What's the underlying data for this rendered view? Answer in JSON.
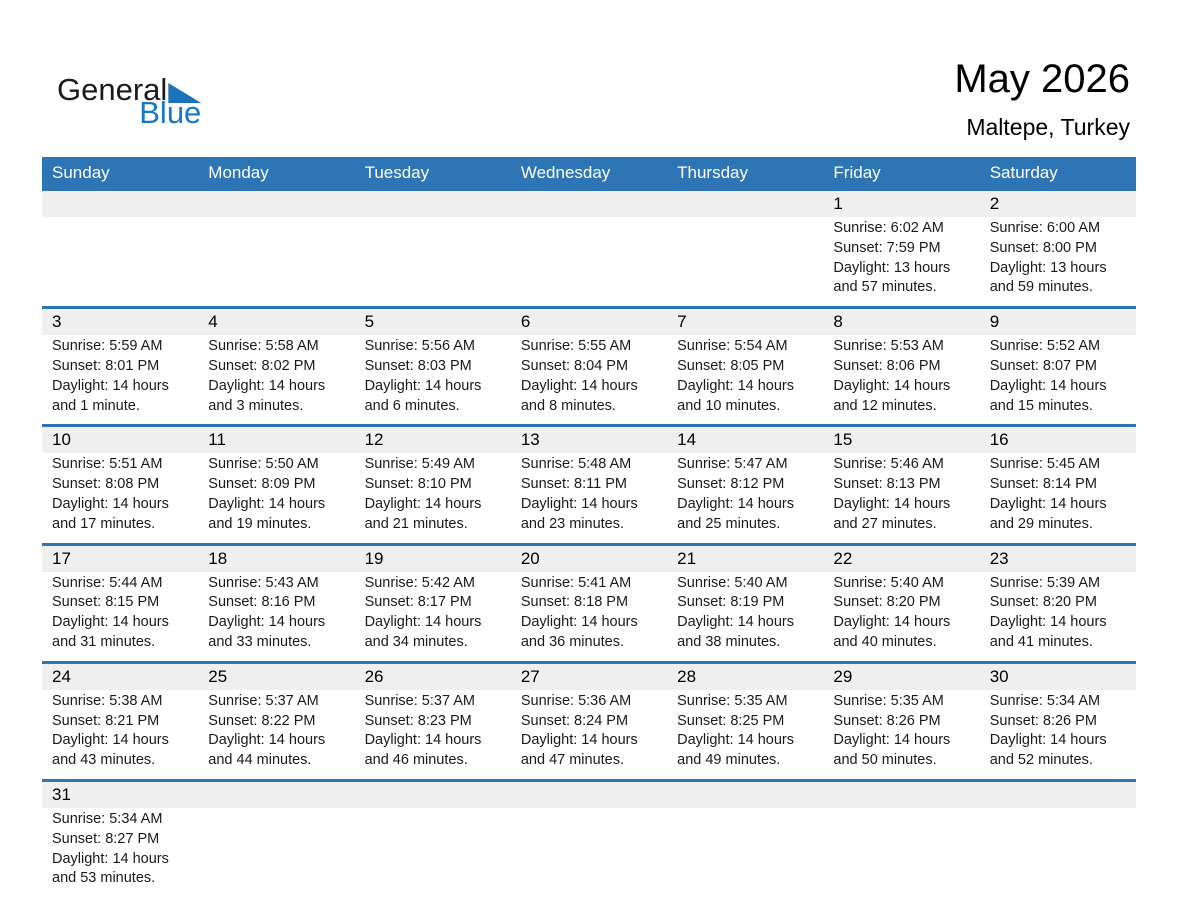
{
  "logo": {
    "text_black": "General",
    "text_blue": "Blue"
  },
  "header": {
    "title": "May 2026",
    "subtitle": "Maltepe, Turkey"
  },
  "colors": {
    "accent_blue": "#2E75B6",
    "band_gray": "#EFEFEF",
    "logo_blue": "#1878C8",
    "logo_triangle": "#1B74B8",
    "header_text": "#FFFFFF"
  },
  "weekdays": [
    "Sunday",
    "Monday",
    "Tuesday",
    "Wednesday",
    "Thursday",
    "Friday",
    "Saturday"
  ],
  "weeks": [
    [
      null,
      null,
      null,
      null,
      null,
      {
        "day": "1",
        "sunrise": "Sunrise: 6:02 AM",
        "sunset": "Sunset: 7:59 PM",
        "daylight": "Daylight: 13 hours and 57 minutes."
      },
      {
        "day": "2",
        "sunrise": "Sunrise: 6:00 AM",
        "sunset": "Sunset: 8:00 PM",
        "daylight": "Daylight: 13 hours and 59 minutes."
      }
    ],
    [
      {
        "day": "3",
        "sunrise": "Sunrise: 5:59 AM",
        "sunset": "Sunset: 8:01 PM",
        "daylight": "Daylight: 14 hours and 1 minute."
      },
      {
        "day": "4",
        "sunrise": "Sunrise: 5:58 AM",
        "sunset": "Sunset: 8:02 PM",
        "daylight": "Daylight: 14 hours and 3 minutes."
      },
      {
        "day": "5",
        "sunrise": "Sunrise: 5:56 AM",
        "sunset": "Sunset: 8:03 PM",
        "daylight": "Daylight: 14 hours and 6 minutes."
      },
      {
        "day": "6",
        "sunrise": "Sunrise: 5:55 AM",
        "sunset": "Sunset: 8:04 PM",
        "daylight": "Daylight: 14 hours and 8 minutes."
      },
      {
        "day": "7",
        "sunrise": "Sunrise: 5:54 AM",
        "sunset": "Sunset: 8:05 PM",
        "daylight": "Daylight: 14 hours and 10 minutes."
      },
      {
        "day": "8",
        "sunrise": "Sunrise: 5:53 AM",
        "sunset": "Sunset: 8:06 PM",
        "daylight": "Daylight: 14 hours and 12 minutes."
      },
      {
        "day": "9",
        "sunrise": "Sunrise: 5:52 AM",
        "sunset": "Sunset: 8:07 PM",
        "daylight": "Daylight: 14 hours and 15 minutes."
      }
    ],
    [
      {
        "day": "10",
        "sunrise": "Sunrise: 5:51 AM",
        "sunset": "Sunset: 8:08 PM",
        "daylight": "Daylight: 14 hours and 17 minutes."
      },
      {
        "day": "11",
        "sunrise": "Sunrise: 5:50 AM",
        "sunset": "Sunset: 8:09 PM",
        "daylight": "Daylight: 14 hours and 19 minutes."
      },
      {
        "day": "12",
        "sunrise": "Sunrise: 5:49 AM",
        "sunset": "Sunset: 8:10 PM",
        "daylight": "Daylight: 14 hours and 21 minutes."
      },
      {
        "day": "13",
        "sunrise": "Sunrise: 5:48 AM",
        "sunset": "Sunset: 8:11 PM",
        "daylight": "Daylight: 14 hours and 23 minutes."
      },
      {
        "day": "14",
        "sunrise": "Sunrise: 5:47 AM",
        "sunset": "Sunset: 8:12 PM",
        "daylight": "Daylight: 14 hours and 25 minutes."
      },
      {
        "day": "15",
        "sunrise": "Sunrise: 5:46 AM",
        "sunset": "Sunset: 8:13 PM",
        "daylight": "Daylight: 14 hours and 27 minutes."
      },
      {
        "day": "16",
        "sunrise": "Sunrise: 5:45 AM",
        "sunset": "Sunset: 8:14 PM",
        "daylight": "Daylight: 14 hours and 29 minutes."
      }
    ],
    [
      {
        "day": "17",
        "sunrise": "Sunrise: 5:44 AM",
        "sunset": "Sunset: 8:15 PM",
        "daylight": "Daylight: 14 hours and 31 minutes."
      },
      {
        "day": "18",
        "sunrise": "Sunrise: 5:43 AM",
        "sunset": "Sunset: 8:16 PM",
        "daylight": "Daylight: 14 hours and 33 minutes."
      },
      {
        "day": "19",
        "sunrise": "Sunrise: 5:42 AM",
        "sunset": "Sunset: 8:17 PM",
        "daylight": "Daylight: 14 hours and 34 minutes."
      },
      {
        "day": "20",
        "sunrise": "Sunrise: 5:41 AM",
        "sunset": "Sunset: 8:18 PM",
        "daylight": "Daylight: 14 hours and 36 minutes."
      },
      {
        "day": "21",
        "sunrise": "Sunrise: 5:40 AM",
        "sunset": "Sunset: 8:19 PM",
        "daylight": "Daylight: 14 hours and 38 minutes."
      },
      {
        "day": "22",
        "sunrise": "Sunrise: 5:40 AM",
        "sunset": "Sunset: 8:20 PM",
        "daylight": "Daylight: 14 hours and 40 minutes."
      },
      {
        "day": "23",
        "sunrise": "Sunrise: 5:39 AM",
        "sunset": "Sunset: 8:20 PM",
        "daylight": "Daylight: 14 hours and 41 minutes."
      }
    ],
    [
      {
        "day": "24",
        "sunrise": "Sunrise: 5:38 AM",
        "sunset": "Sunset: 8:21 PM",
        "daylight": "Daylight: 14 hours and 43 minutes."
      },
      {
        "day": "25",
        "sunrise": "Sunrise: 5:37 AM",
        "sunset": "Sunset: 8:22 PM",
        "daylight": "Daylight: 14 hours and 44 minutes."
      },
      {
        "day": "26",
        "sunrise": "Sunrise: 5:37 AM",
        "sunset": "Sunset: 8:23 PM",
        "daylight": "Daylight: 14 hours and 46 minutes."
      },
      {
        "day": "27",
        "sunrise": "Sunrise: 5:36 AM",
        "sunset": "Sunset: 8:24 PM",
        "daylight": "Daylight: 14 hours and 47 minutes."
      },
      {
        "day": "28",
        "sunrise": "Sunrise: 5:35 AM",
        "sunset": "Sunset: 8:25 PM",
        "daylight": "Daylight: 14 hours and 49 minutes."
      },
      {
        "day": "29",
        "sunrise": "Sunrise: 5:35 AM",
        "sunset": "Sunset: 8:26 PM",
        "daylight": "Daylight: 14 hours and 50 minutes."
      },
      {
        "day": "30",
        "sunrise": "Sunrise: 5:34 AM",
        "sunset": "Sunset: 8:26 PM",
        "daylight": "Daylight: 14 hours and 52 minutes."
      }
    ],
    [
      {
        "day": "31",
        "sunrise": "Sunrise: 5:34 AM",
        "sunset": "Sunset: 8:27 PM",
        "daylight": "Daylight: 14 hours and 53 minutes."
      },
      null,
      null,
      null,
      null,
      null,
      null
    ]
  ]
}
